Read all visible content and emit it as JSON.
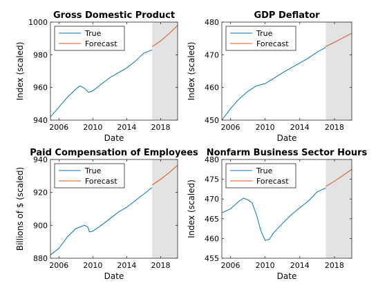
{
  "colors": {
    "true": "#0072bd",
    "forecast": "#d95319",
    "shade": "#e3e3e3"
  },
  "chart_data": [
    {
      "type": "line",
      "title": "Gross Domestic Product",
      "xlabel": "Date",
      "ylabel": "Index (scaled)",
      "xlim": [
        2005,
        2020
      ],
      "ylim": [
        940,
        1000
      ],
      "xticks": [
        2006,
        2010,
        2014,
        2018
      ],
      "yticks": [
        940,
        960,
        980,
        1000
      ],
      "forecast_start": 2017,
      "legend": {
        "position": "top-left",
        "entries": [
          "True",
          "Forecast"
        ]
      },
      "series": [
        {
          "name": "True",
          "points": [
            [
              2005,
              942
            ],
            [
              2006,
              948
            ],
            [
              2007,
              954
            ],
            [
              2008,
              959
            ],
            [
              2008.5,
              961
            ],
            [
              2009,
              959.5
            ],
            [
              2009.5,
              957
            ],
            [
              2010,
              958
            ],
            [
              2011,
              962
            ],
            [
              2012,
              966
            ],
            [
              2013,
              969
            ],
            [
              2014,
              972
            ],
            [
              2015,
              976
            ],
            [
              2016,
              981
            ],
            [
              2017,
              983
            ]
          ]
        },
        {
          "name": "Forecast",
          "points": [
            [
              2017,
              985
            ],
            [
              2018,
              988.5
            ],
            [
              2019,
              993
            ],
            [
              2020,
              998
            ]
          ]
        }
      ]
    },
    {
      "type": "line",
      "title": "GDP Deflator",
      "xlabel": "Date",
      "ylabel": "Index (scaled)",
      "xlim": [
        2005,
        2020
      ],
      "ylim": [
        450,
        480
      ],
      "xticks": [
        2006,
        2010,
        2014,
        2018
      ],
      "yticks": [
        450,
        460,
        470,
        480
      ],
      "forecast_start": 2017,
      "legend": {
        "position": "top-left",
        "entries": [
          "True",
          "Forecast"
        ]
      },
      "series": [
        {
          "name": "True",
          "points": [
            [
              2005,
              450
            ],
            [
              2006,
              453.5
            ],
            [
              2007,
              456.5
            ],
            [
              2008,
              458.8
            ],
            [
              2009,
              460.5
            ],
            [
              2010,
              461.2
            ],
            [
              2011,
              462.8
            ],
            [
              2012,
              464.5
            ],
            [
              2013,
              466
            ],
            [
              2014,
              467.5
            ],
            [
              2015,
              469
            ],
            [
              2016,
              470.8
            ],
            [
              2017,
              472.3
            ]
          ]
        },
        {
          "name": "Forecast",
          "points": [
            [
              2017,
              472.5
            ],
            [
              2018,
              473.8
            ],
            [
              2019,
              475.2
            ],
            [
              2020,
              476.6
            ]
          ]
        }
      ]
    },
    {
      "type": "line",
      "title": "Paid Compensation of Employees",
      "xlabel": "Date",
      "ylabel": "Billions of $ (scaled)",
      "xlim": [
        2005,
        2020
      ],
      "ylim": [
        880,
        940
      ],
      "xticks": [
        2006,
        2010,
        2014,
        2018
      ],
      "yticks": [
        880,
        900,
        920,
        940
      ],
      "forecast_start": 2017,
      "legend": {
        "position": "top-left",
        "entries": [
          "True",
          "Forecast"
        ]
      },
      "series": [
        {
          "name": "True",
          "points": [
            [
              2005,
              882
            ],
            [
              2006,
              886
            ],
            [
              2007,
              893
            ],
            [
              2008,
              898
            ],
            [
              2009,
              900
            ],
            [
              2009.4,
              899
            ],
            [
              2009.6,
              896
            ],
            [
              2010,
              896.5
            ],
            [
              2011,
              900
            ],
            [
              2012,
              904
            ],
            [
              2013,
              908
            ],
            [
              2014,
              911
            ],
            [
              2015,
              915
            ],
            [
              2016,
              919
            ],
            [
              2017,
              923
            ]
          ]
        },
        {
          "name": "Forecast",
          "points": [
            [
              2017,
              924.5
            ],
            [
              2018,
              928
            ],
            [
              2019,
              932
            ],
            [
              2020,
              936.5
            ]
          ]
        }
      ]
    },
    {
      "type": "line",
      "title": "Nonfarm Business Sector Hours",
      "xlabel": "Date",
      "ylabel": "Index (scaled)",
      "xlim": [
        2005,
        2020
      ],
      "ylim": [
        455,
        480
      ],
      "xticks": [
        2006,
        2010,
        2014,
        2018
      ],
      "yticks": [
        455,
        460,
        465,
        470,
        475,
        480
      ],
      "forecast_start": 2017,
      "legend": {
        "position": "top-left",
        "entries": [
          "True",
          "Forecast"
        ]
      },
      "series": [
        {
          "name": "True",
          "points": [
            [
              2005,
              466.5
            ],
            [
              2006,
              467.5
            ],
            [
              2007,
              469.5
            ],
            [
              2007.5,
              470.2
            ],
            [
              2008,
              469.8
            ],
            [
              2008.5,
              469
            ],
            [
              2009,
              466
            ],
            [
              2009.5,
              462
            ],
            [
              2010,
              459.5
            ],
            [
              2010.5,
              459.8
            ],
            [
              2011,
              461.5
            ],
            [
              2012,
              463.8
            ],
            [
              2013,
              466
            ],
            [
              2014,
              467.8
            ],
            [
              2015,
              469.5
            ],
            [
              2016,
              471.8
            ],
            [
              2017,
              472.8
            ]
          ]
        },
        {
          "name": "Forecast",
          "points": [
            [
              2017,
              473.2
            ],
            [
              2018,
              474.5
            ],
            [
              2019,
              476
            ],
            [
              2020,
              477.5
            ]
          ]
        }
      ]
    }
  ]
}
